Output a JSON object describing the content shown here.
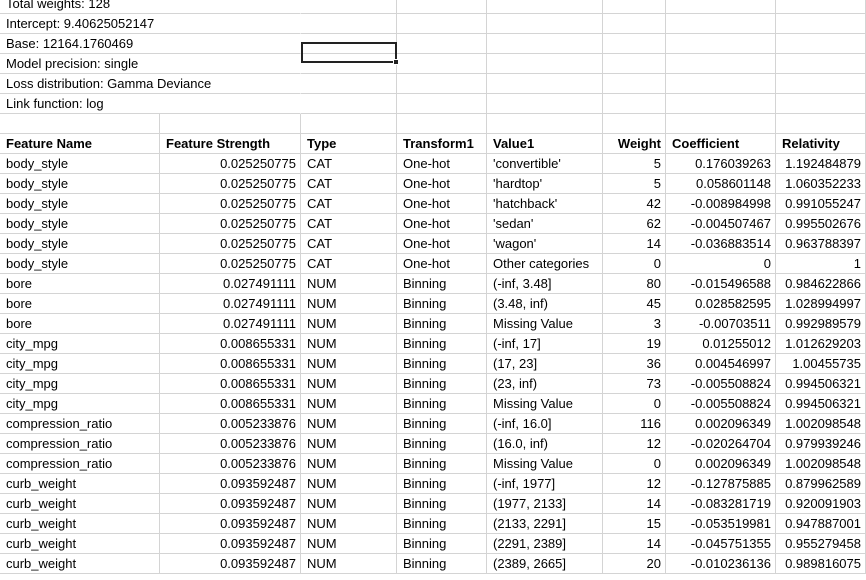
{
  "meta": [
    "Total weights: 128",
    "Intercept: 9.40625052147",
    "Base: 12164.1760469",
    "Model precision: single",
    "Loss distribution: Gamma Deviance",
    "Link function: log"
  ],
  "headers": [
    "Feature Name",
    "Feature Strength",
    "Type",
    "Transform1",
    "Value1",
    "Weight",
    "Coefficient",
    "Relativity"
  ],
  "rows": [
    [
      "body_style",
      "0.025250775",
      "CAT",
      "One-hot",
      "'convertible'",
      "5",
      "0.176039263",
      "1.192484879"
    ],
    [
      "body_style",
      "0.025250775",
      "CAT",
      "One-hot",
      "'hardtop'",
      "5",
      "0.058601148",
      "1.060352233"
    ],
    [
      "body_style",
      "0.025250775",
      "CAT",
      "One-hot",
      "'hatchback'",
      "42",
      "-0.008984998",
      "0.991055247"
    ],
    [
      "body_style",
      "0.025250775",
      "CAT",
      "One-hot",
      "'sedan'",
      "62",
      "-0.004507467",
      "0.995502676"
    ],
    [
      "body_style",
      "0.025250775",
      "CAT",
      "One-hot",
      "'wagon'",
      "14",
      "-0.036883514",
      "0.963788397"
    ],
    [
      "body_style",
      "0.025250775",
      "CAT",
      "One-hot",
      "Other categories",
      "0",
      "0",
      "1"
    ],
    [
      "bore",
      "0.027491111",
      "NUM",
      "Binning",
      "(-inf, 3.48]",
      "80",
      "-0.015496588",
      "0.984622866"
    ],
    [
      "bore",
      "0.027491111",
      "NUM",
      "Binning",
      "(3.48, inf)",
      "45",
      "0.028582595",
      "1.028994997"
    ],
    [
      "bore",
      "0.027491111",
      "NUM",
      "Binning",
      "Missing Value",
      "3",
      "-0.00703511",
      "0.992989579"
    ],
    [
      "city_mpg",
      "0.008655331",
      "NUM",
      "Binning",
      "(-inf, 17]",
      "19",
      "0.01255012",
      "1.012629203"
    ],
    [
      "city_mpg",
      "0.008655331",
      "NUM",
      "Binning",
      "(17, 23]",
      "36",
      "0.004546997",
      "1.00455735"
    ],
    [
      "city_mpg",
      "0.008655331",
      "NUM",
      "Binning",
      "(23, inf)",
      "73",
      "-0.005508824",
      "0.994506321"
    ],
    [
      "city_mpg",
      "0.008655331",
      "NUM",
      "Binning",
      "Missing Value",
      "0",
      "-0.005508824",
      "0.994506321"
    ],
    [
      "compression_ratio",
      "0.005233876",
      "NUM",
      "Binning",
      "(-inf, 16.0]",
      "116",
      "0.002096349",
      "1.002098548"
    ],
    [
      "compression_ratio",
      "0.005233876",
      "NUM",
      "Binning",
      "(16.0, inf)",
      "12",
      "-0.020264704",
      "0.979939246"
    ],
    [
      "compression_ratio",
      "0.005233876",
      "NUM",
      "Binning",
      "Missing Value",
      "0",
      "0.002096349",
      "1.002098548"
    ],
    [
      "curb_weight",
      "0.093592487",
      "NUM",
      "Binning",
      "(-inf, 1977]",
      "12",
      "-0.127875885",
      "0.879962589"
    ],
    [
      "curb_weight",
      "0.093592487",
      "NUM",
      "Binning",
      "(1977, 2133]",
      "14",
      "-0.083281719",
      "0.920091903"
    ],
    [
      "curb_weight",
      "0.093592487",
      "NUM",
      "Binning",
      "(2133, 2291]",
      "15",
      "-0.053519981",
      "0.947887001"
    ],
    [
      "curb_weight",
      "0.093592487",
      "NUM",
      "Binning",
      "(2291, 2389]",
      "14",
      "-0.045751355",
      "0.955279458"
    ],
    [
      "curb_weight",
      "0.093592487",
      "NUM",
      "Binning",
      "(2389, 2665]",
      "20",
      "-0.010236136",
      "0.989816075"
    ]
  ]
}
